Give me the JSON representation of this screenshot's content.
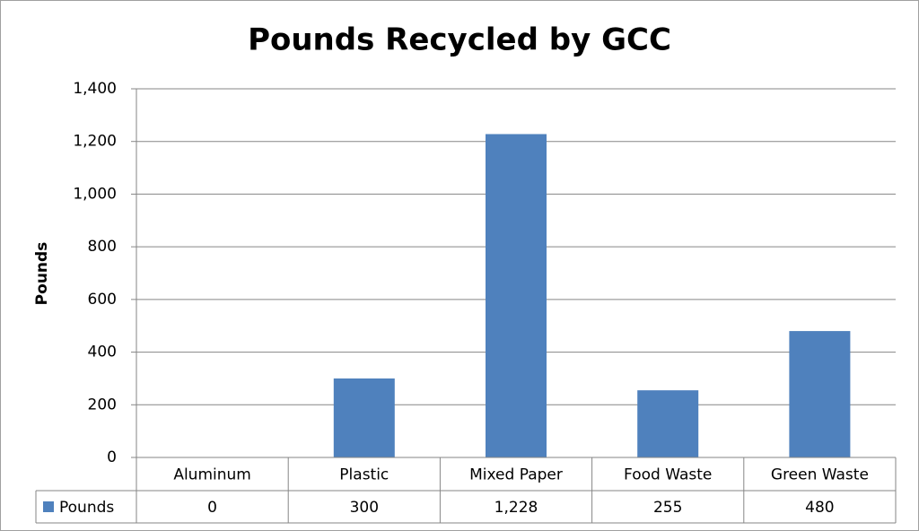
{
  "chart_data": {
    "type": "bar",
    "title": "Pounds Recycled by GCC",
    "y_label": "Pounds",
    "categories": [
      "Aluminum",
      "Plastic",
      "Mixed Paper",
      "Food Waste",
      "Green Waste"
    ],
    "series": [
      {
        "name": "Pounds",
        "color": "#4f81bd",
        "values": [
          0,
          300,
          1228,
          255,
          480
        ],
        "value_labels": [
          "0",
          "300",
          "1,228",
          "255",
          "480"
        ]
      }
    ],
    "ylim": [
      0,
      1400
    ],
    "yticks": [
      0,
      200,
      400,
      600,
      800,
      {
        "value": 1000,
        "label": "1,000"
      },
      {
        "value": 1200,
        "label": "1,200"
      },
      {
        "value": 1400,
        "label": "1,400"
      }
    ],
    "grid": true,
    "data_table": true
  }
}
